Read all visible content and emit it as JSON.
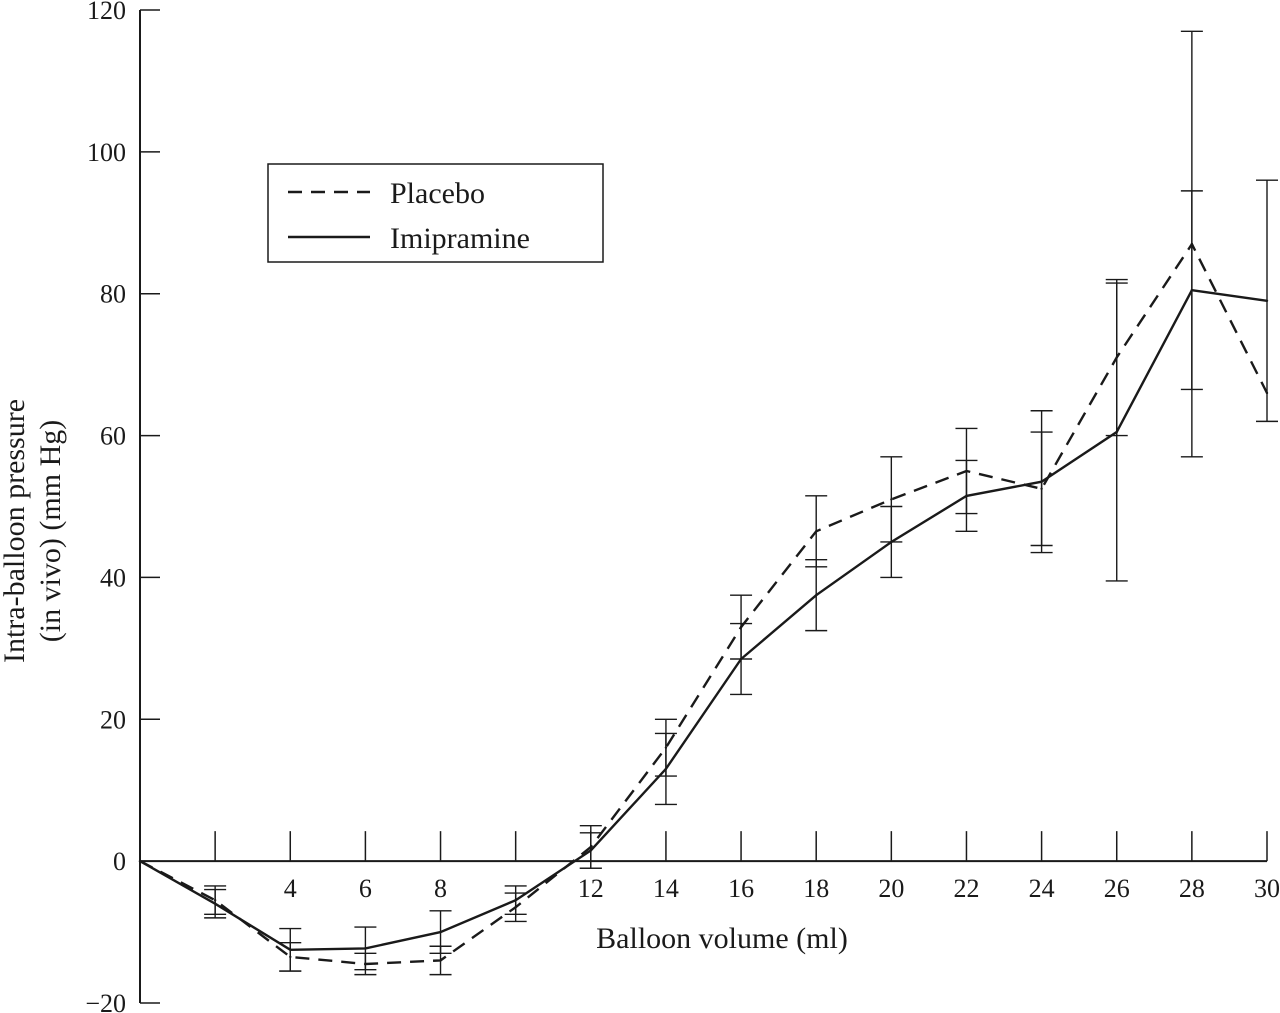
{
  "chart_data": {
    "type": "line",
    "title": "",
    "xlabel": "Balloon volume (ml)",
    "ylabel_lines": [
      "Intra-balloon pressure",
      "(in vivo) (mm Hg)"
    ],
    "xlim": [
      0,
      30
    ],
    "ylim": [
      -20,
      120
    ],
    "x_tick_labels": [
      {
        "value": 4,
        "label": "4"
      },
      {
        "value": 6,
        "label": "6"
      },
      {
        "value": 8,
        "label": "8"
      },
      {
        "value": 12,
        "label": "12"
      },
      {
        "value": 14,
        "label": "14"
      },
      {
        "value": 16,
        "label": "16"
      },
      {
        "value": 18,
        "label": "18"
      },
      {
        "value": 20,
        "label": "20"
      },
      {
        "value": 22,
        "label": "22"
      },
      {
        "value": 24,
        "label": "24"
      },
      {
        "value": 26,
        "label": "26"
      },
      {
        "value": 28,
        "label": "28"
      },
      {
        "value": 30,
        "label": "30"
      }
    ],
    "x_ticks": [
      0,
      2,
      4,
      6,
      8,
      10,
      12,
      14,
      16,
      18,
      20,
      22,
      24,
      26,
      28,
      30
    ],
    "y_ticks": [
      {
        "value": -20,
        "label": "−20"
      },
      {
        "value": 0,
        "label": "0"
      },
      {
        "value": 20,
        "label": "20"
      },
      {
        "value": 40,
        "label": "40"
      },
      {
        "value": 60,
        "label": "60"
      },
      {
        "value": 80,
        "label": "80"
      },
      {
        "value": 100,
        "label": "100"
      },
      {
        "value": 120,
        "label": "120"
      }
    ],
    "legend_position": "top-left",
    "series": [
      {
        "name": "Placebo",
        "dash": "dashed",
        "x": [
          0,
          2,
          4,
          6,
          8,
          10,
          12,
          14,
          16,
          18,
          20,
          22,
          24,
          26,
          28,
          30
        ],
        "y": [
          0,
          -5.5,
          -13.5,
          -14.5,
          -14,
          -6.5,
          2,
          16,
          33,
          46.5,
          51,
          55,
          52.5,
          71,
          87,
          66
        ],
        "err": [
          0,
          2,
          2,
          1.5,
          2,
          2,
          3,
          4,
          4.5,
          5,
          6,
          6,
          8,
          11,
          30,
          0
        ]
      },
      {
        "name": "Imipramine",
        "dash": "solid",
        "x": [
          0,
          2,
          4,
          6,
          8,
          10,
          12,
          14,
          16,
          18,
          20,
          22,
          24,
          26,
          28,
          30
        ],
        "y": [
          0,
          -6,
          -12.5,
          -12.3,
          -10,
          -5.5,
          1.5,
          13,
          28.5,
          37.5,
          45,
          51.5,
          53.5,
          60.5,
          80.5,
          79
        ],
        "err": [
          0,
          2,
          3,
          3,
          3,
          2,
          2.5,
          5,
          5,
          5,
          5,
          5,
          10,
          21,
          14,
          17
        ]
      }
    ]
  }
}
